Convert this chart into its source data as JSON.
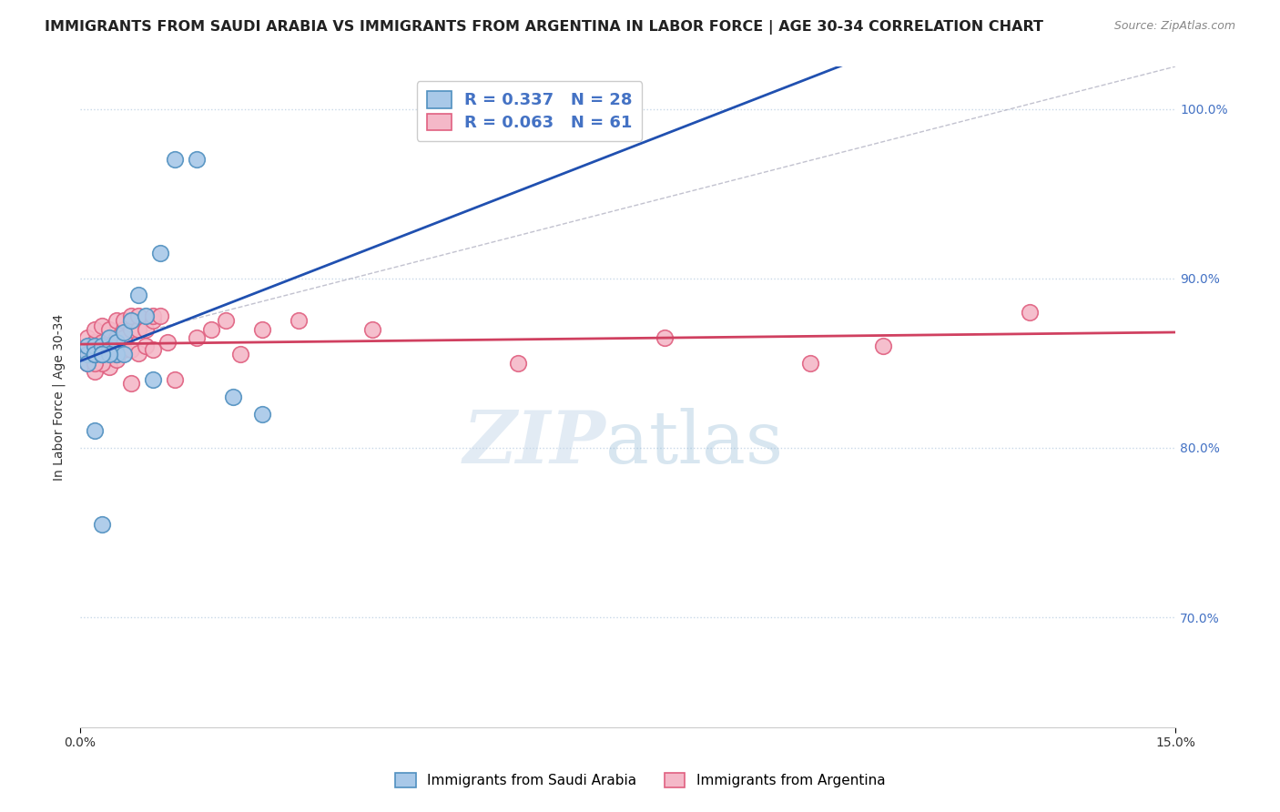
{
  "title": "IMMIGRANTS FROM SAUDI ARABIA VS IMMIGRANTS FROM ARGENTINA IN LABOR FORCE | AGE 30-34 CORRELATION CHART",
  "source": "Source: ZipAtlas.com",
  "ylabel": "In Labor Force | Age 30-34",
  "xlim": [
    0.0,
    0.15
  ],
  "ylim": [
    0.635,
    1.025
  ],
  "yticks": [
    0.7,
    0.8,
    0.9,
    1.0
  ],
  "ytick_labels": [
    "70.0%",
    "80.0%",
    "90.0%",
    "100.0%"
  ],
  "xticks": [
    0.0,
    0.15
  ],
  "xtick_labels": [
    "0.0%",
    "15.0%"
  ],
  "legend_label_saudi": "R = 0.337   N = 28",
  "legend_label_arg": "R = 0.063   N = 61",
  "saudi_color": "#a8c8e8",
  "saudi_edge": "#5090c0",
  "argentina_color": "#f4b8c8",
  "argentina_edge": "#e06080",
  "trend_saudi_color": "#2050b0",
  "trend_argentina_color": "#d04060",
  "diagonal_color": "#9090a8",
  "background_color": "#ffffff",
  "grid_color": "#c8d8e8",
  "saudi_x": [
    0.001,
    0.001,
    0.001,
    0.002,
    0.002,
    0.002,
    0.003,
    0.003,
    0.003,
    0.004,
    0.004,
    0.005,
    0.005,
    0.006,
    0.006,
    0.007,
    0.008,
    0.009,
    0.01,
    0.011,
    0.013,
    0.016,
    0.021,
    0.025,
    0.004,
    0.003,
    0.002,
    0.003
  ],
  "saudi_y": [
    0.855,
    0.86,
    0.85,
    0.855,
    0.86,
    0.855,
    0.86,
    0.855,
    0.855,
    0.865,
    0.858,
    0.862,
    0.855,
    0.868,
    0.855,
    0.875,
    0.89,
    0.878,
    0.84,
    0.915,
    0.97,
    0.97,
    0.83,
    0.82,
    0.855,
    0.855,
    0.81,
    0.755
  ],
  "argentina_x": [
    0.001,
    0.001,
    0.001,
    0.001,
    0.002,
    0.002,
    0.002,
    0.002,
    0.002,
    0.002,
    0.003,
    0.003,
    0.003,
    0.003,
    0.003,
    0.003,
    0.004,
    0.004,
    0.004,
    0.004,
    0.004,
    0.005,
    0.005,
    0.005,
    0.005,
    0.005,
    0.006,
    0.006,
    0.006,
    0.006,
    0.007,
    0.007,
    0.007,
    0.008,
    0.008,
    0.008,
    0.009,
    0.009,
    0.01,
    0.01,
    0.01,
    0.011,
    0.012,
    0.013,
    0.016,
    0.02,
    0.025,
    0.03,
    0.04,
    0.06,
    0.08,
    0.1,
    0.11,
    0.13,
    0.018,
    0.022,
    0.007,
    0.005,
    0.004,
    0.003,
    0.002
  ],
  "argentina_y": [
    0.855,
    0.86,
    0.85,
    0.865,
    0.855,
    0.85,
    0.858,
    0.862,
    0.845,
    0.87,
    0.858,
    0.852,
    0.862,
    0.856,
    0.872,
    0.858,
    0.862,
    0.858,
    0.87,
    0.855,
    0.848,
    0.858,
    0.865,
    0.852,
    0.875,
    0.862,
    0.87,
    0.858,
    0.875,
    0.865,
    0.87,
    0.858,
    0.878,
    0.87,
    0.856,
    0.878,
    0.87,
    0.86,
    0.875,
    0.858,
    0.878,
    0.878,
    0.862,
    0.84,
    0.865,
    0.875,
    0.87,
    0.875,
    0.87,
    0.85,
    0.865,
    0.85,
    0.86,
    0.88,
    0.87,
    0.855,
    0.838,
    0.855,
    0.86,
    0.85,
    0.85
  ],
  "title_fontsize": 11.5,
  "axis_label_fontsize": 10,
  "tick_fontsize": 10,
  "source_fontsize": 9,
  "legend_fontsize": 13
}
